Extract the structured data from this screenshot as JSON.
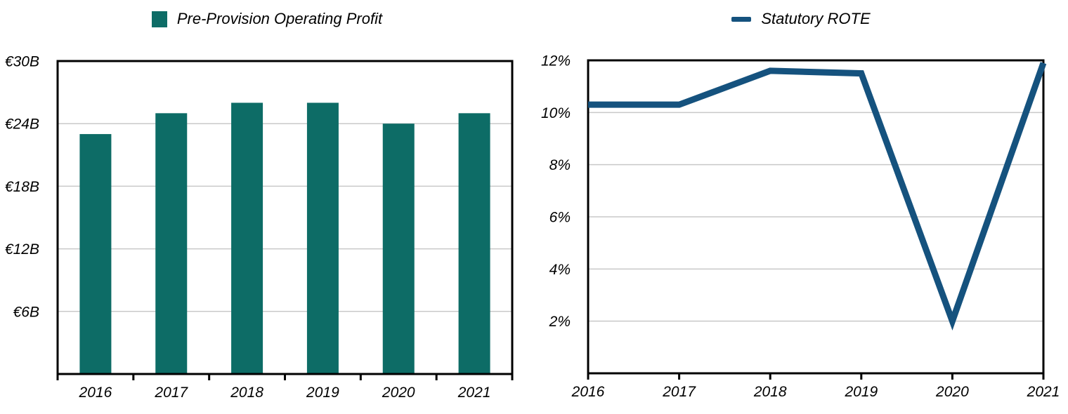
{
  "chart_data": [
    {
      "type": "bar",
      "legend": "Pre-Provision Operating Profit",
      "color": "#0D6C66",
      "categories": [
        "2016",
        "2017",
        "2018",
        "2019",
        "2020",
        "2021"
      ],
      "values": [
        23,
        25,
        26,
        26,
        24,
        25
      ],
      "y_axis": {
        "min": 0,
        "max": 30,
        "tick_values": [
          30,
          24,
          18,
          12,
          6
        ],
        "tick_labels": [
          "€30B",
          "€24B",
          "€18B",
          "€12B",
          "€6B"
        ]
      },
      "grid": true,
      "legend_position": "top"
    },
    {
      "type": "line",
      "legend": "Statutory ROTE",
      "color": "#15527E",
      "categories": [
        "2016",
        "2017",
        "2018",
        "2019",
        "2020",
        "2021"
      ],
      "values": [
        10.3,
        10.3,
        11.6,
        11.5,
        2.0,
        11.9
      ],
      "y_axis": {
        "min": 0,
        "max": 12,
        "tick_values": [
          12,
          10,
          8,
          6,
          4,
          2
        ],
        "tick_labels": [
          "12%",
          "10%",
          "8%",
          "6%",
          "4%",
          "2%"
        ]
      },
      "grid": true,
      "legend_position": "top"
    }
  ],
  "colors": {
    "bar_teal": "#0D6C66",
    "line_blue": "#15527E",
    "gridline": "#c9c9c9",
    "axis_frame": "#000000",
    "background": "#ffffff"
  }
}
